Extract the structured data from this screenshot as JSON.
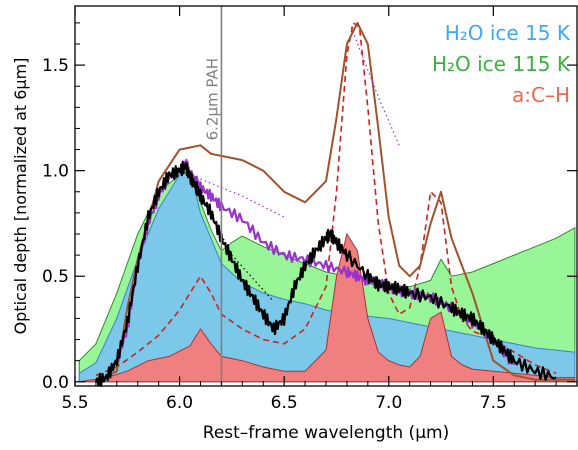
{
  "chart_data": {
    "type": "area",
    "xlabel": "Rest–frame wavelength (μm)",
    "ylabel": "Optical depth [normalized at 6μm]",
    "xlim": [
      5.5,
      7.9
    ],
    "ylim": [
      -0.02,
      1.78
    ],
    "x_ticks": [
      5.5,
      6.0,
      6.5,
      7.0,
      7.5
    ],
    "x_tick_labels": [
      "5.5",
      "6.0",
      "6.5",
      "7.0",
      "7.5"
    ],
    "y_ticks": [
      0.0,
      0.5,
      1.0,
      1.5
    ],
    "y_tick_labels": [
      "0.0",
      "0.5",
      "1.0",
      "1.5"
    ],
    "grid": false,
    "legend_position": "top-right",
    "legend": [
      {
        "label": "H₂O ice 15 K",
        "color": "#3fa9f5"
      },
      {
        "label": "H₂O ice 115 K",
        "color": "#3cb043"
      },
      {
        "label": "a:C–H",
        "color": "#f0684a"
      }
    ],
    "annotations": [
      {
        "text": "6.2μm PAH",
        "x": 6.2,
        "color": "#808080"
      }
    ],
    "series": [
      {
        "role": "h2o-115k-fill",
        "color": "#98f598",
        "x": [
          5.52,
          5.6,
          5.7,
          5.8,
          5.9,
          6.0,
          6.05,
          6.1,
          6.15,
          6.2,
          6.25,
          6.3,
          6.4,
          6.5,
          6.6,
          6.7,
          6.8,
          6.9,
          7.0,
          7.1,
          7.2,
          7.25,
          7.3,
          7.4,
          7.5,
          7.6,
          7.7,
          7.8,
          7.89
        ],
        "values": [
          0.1,
          0.18,
          0.42,
          0.7,
          0.9,
          0.98,
          1.0,
          0.85,
          0.72,
          0.62,
          0.66,
          0.69,
          0.64,
          0.6,
          0.56,
          0.52,
          0.5,
          0.48,
          0.46,
          0.45,
          0.48,
          0.58,
          0.5,
          0.52,
          0.56,
          0.6,
          0.64,
          0.68,
          0.73
        ]
      },
      {
        "role": "h2o-15k-fill",
        "color": "#7cc8e8",
        "x": [
          5.52,
          5.6,
          5.7,
          5.8,
          5.9,
          6.0,
          6.05,
          6.1,
          6.2,
          6.3,
          6.4,
          6.5,
          6.6,
          6.7,
          6.8,
          6.9,
          7.0,
          7.1,
          7.2,
          7.3,
          7.4,
          7.5,
          7.6,
          7.7,
          7.8,
          7.89
        ],
        "values": [
          0.04,
          0.09,
          0.3,
          0.58,
          0.82,
          0.98,
          1.0,
          0.8,
          0.56,
          0.47,
          0.42,
          0.39,
          0.37,
          0.34,
          0.32,
          0.31,
          0.3,
          0.28,
          0.26,
          0.24,
          0.22,
          0.2,
          0.18,
          0.16,
          0.15,
          0.14
        ]
      },
      {
        "role": "ach-fill",
        "color": "#f08080",
        "x": [
          5.52,
          5.65,
          5.75,
          5.85,
          5.95,
          6.05,
          6.1,
          6.15,
          6.2,
          6.3,
          6.4,
          6.5,
          6.6,
          6.7,
          6.75,
          6.8,
          6.85,
          6.9,
          6.95,
          7.0,
          7.05,
          7.1,
          7.15,
          7.2,
          7.25,
          7.3,
          7.35,
          7.4,
          7.5,
          7.6,
          7.7,
          7.8,
          7.89
        ],
        "values": [
          0.0,
          0.02,
          0.05,
          0.1,
          0.12,
          0.17,
          0.25,
          0.18,
          0.12,
          0.1,
          0.07,
          0.05,
          0.05,
          0.15,
          0.5,
          0.7,
          0.62,
          0.3,
          0.14,
          0.1,
          0.08,
          0.07,
          0.12,
          0.3,
          0.33,
          0.12,
          0.08,
          0.06,
          0.05,
          0.04,
          0.03,
          0.02,
          0.02
        ]
      },
      {
        "role": "red-dashed-model",
        "color": "#cc2222",
        "x": [
          5.6,
          5.7,
          5.8,
          5.9,
          6.0,
          6.05,
          6.1,
          6.15,
          6.2,
          6.3,
          6.4,
          6.5,
          6.6,
          6.7,
          6.75,
          6.8,
          6.83,
          6.86,
          6.9,
          6.95,
          7.0,
          7.05,
          7.1,
          7.15,
          7.2,
          7.25,
          7.3,
          7.35,
          7.4,
          7.5,
          7.6,
          7.7,
          7.8
        ],
        "values": [
          0.03,
          0.07,
          0.14,
          0.22,
          0.34,
          0.42,
          0.5,
          0.42,
          0.32,
          0.25,
          0.2,
          0.18,
          0.25,
          0.45,
          0.9,
          1.55,
          1.7,
          1.68,
          1.3,
          0.75,
          0.42,
          0.32,
          0.35,
          0.55,
          0.9,
          0.85,
          0.45,
          0.3,
          0.24,
          0.2,
          0.14,
          0.08,
          0.04
        ]
      },
      {
        "role": "brown-model",
        "color": "#a0522d",
        "x": [
          5.6,
          5.7,
          5.75,
          5.8,
          5.9,
          6.0,
          6.1,
          6.15,
          6.2,
          6.3,
          6.4,
          6.5,
          6.6,
          6.7,
          6.75,
          6.8,
          6.85,
          6.9,
          6.95,
          7.0,
          7.05,
          7.1,
          7.15,
          7.2,
          7.25,
          7.3,
          7.4,
          7.5,
          7.6,
          7.7,
          7.8,
          7.89
        ],
        "values": [
          0.0,
          0.05,
          0.35,
          0.58,
          0.95,
          1.1,
          1.12,
          1.08,
          1.07,
          1.05,
          1.0,
          0.9,
          0.85,
          0.95,
          1.25,
          1.6,
          1.7,
          1.6,
          1.2,
          0.78,
          0.55,
          0.5,
          0.55,
          0.75,
          0.9,
          0.68,
          0.42,
          0.1,
          0.03,
          0.01,
          0.01,
          0.01
        ]
      },
      {
        "role": "observed-purple",
        "color": "#9933cc",
        "x": [
          5.6,
          5.65,
          5.7,
          5.75,
          5.8,
          5.85,
          5.9,
          5.95,
          6.0,
          6.03,
          6.05,
          6.08,
          6.1,
          6.15,
          6.2,
          6.3,
          6.4,
          6.5,
          6.6,
          6.7,
          6.8,
          6.85,
          6.9,
          6.95,
          7.0,
          7.05,
          7.1,
          7.2,
          7.3,
          7.4,
          7.5,
          7.6
        ],
        "values": [
          0.0,
          0.02,
          0.1,
          0.25,
          0.55,
          0.75,
          0.88,
          0.97,
          1.0,
          1.04,
          0.98,
          0.95,
          0.92,
          0.88,
          0.83,
          0.77,
          0.66,
          0.6,
          0.58,
          0.55,
          0.52,
          0.5,
          0.48,
          0.47,
          0.45,
          0.43,
          0.42,
          0.4,
          0.35,
          0.28,
          0.2,
          0.08
        ]
      },
      {
        "role": "observed-black",
        "color": "#000000",
        "x": [
          5.6,
          5.65,
          5.7,
          5.75,
          5.8,
          5.85,
          5.9,
          5.95,
          6.0,
          6.03,
          6.05,
          6.08,
          6.1,
          6.15,
          6.2,
          6.25,
          6.3,
          6.35,
          6.4,
          6.45,
          6.5,
          6.55,
          6.6,
          6.65,
          6.7,
          6.72,
          6.75,
          6.8,
          6.9,
          6.95,
          7.0,
          7.05,
          7.1,
          7.2,
          7.3,
          7.35,
          7.4,
          7.45,
          7.5,
          7.55,
          7.6,
          7.7,
          7.8
        ],
        "values": [
          0.0,
          0.02,
          0.1,
          0.28,
          0.55,
          0.78,
          0.9,
          0.98,
          1.0,
          1.02,
          0.97,
          0.92,
          0.88,
          0.8,
          0.68,
          0.58,
          0.48,
          0.4,
          0.32,
          0.25,
          0.3,
          0.45,
          0.55,
          0.62,
          0.68,
          0.7,
          0.66,
          0.6,
          0.5,
          0.46,
          0.45,
          0.44,
          0.42,
          0.4,
          0.35,
          0.32,
          0.3,
          0.25,
          0.2,
          0.15,
          0.1,
          0.05,
          0.02
        ]
      },
      {
        "role": "dotted-interp-a",
        "color": "#000000",
        "x": [
          6.05,
          6.25,
          6.45
        ],
        "values": [
          0.98,
          0.6,
          0.38
        ]
      },
      {
        "role": "dotted-interp-b",
        "color": "#9933cc",
        "x": [
          6.1,
          6.3,
          6.5
        ],
        "values": [
          0.96,
          0.88,
          0.78
        ]
      },
      {
        "role": "dotted-interp-c",
        "color": "#9933cc",
        "x": [
          6.82,
          6.95,
          7.05
        ],
        "values": [
          1.68,
          1.35,
          1.12
        ]
      }
    ]
  }
}
